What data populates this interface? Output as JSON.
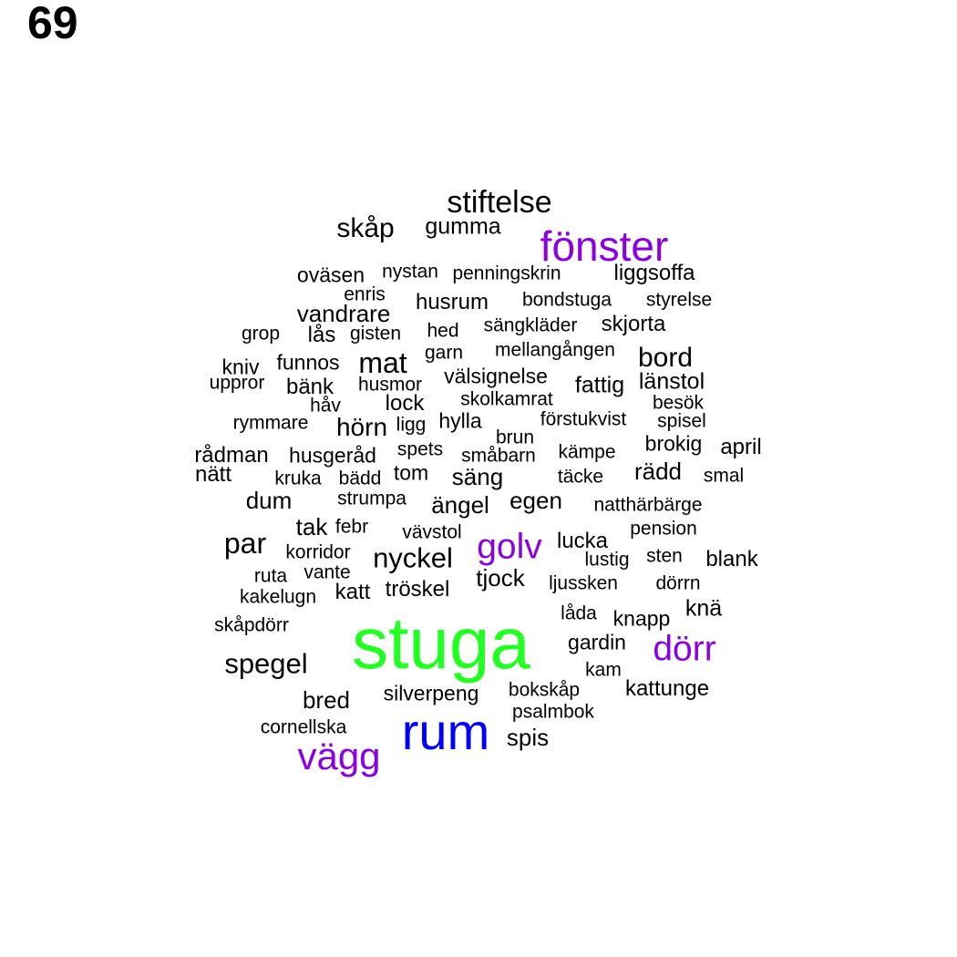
{
  "page_number": "69",
  "colors": {
    "default": "#000000",
    "purple": "#8B00E0",
    "blue": "#0000FF",
    "green": "#22FF22"
  },
  "words": [
    {
      "text": "stiftelse",
      "c": "default"
    },
    {
      "text": "skåp",
      "c": "default"
    },
    {
      "text": "gumma",
      "c": "default"
    },
    {
      "text": "fönster",
      "c": "purple"
    },
    {
      "text": "oväsen",
      "c": "default"
    },
    {
      "text": "nystan",
      "c": "default"
    },
    {
      "text": "penningskrin",
      "c": "default"
    },
    {
      "text": "liggsoffa",
      "c": "default"
    },
    {
      "text": "enris",
      "c": "default"
    },
    {
      "text": "husrum",
      "c": "default"
    },
    {
      "text": "bondstuga",
      "c": "default"
    },
    {
      "text": "styrelse",
      "c": "default"
    },
    {
      "text": "vandrare",
      "c": "default"
    },
    {
      "text": "grop",
      "c": "default"
    },
    {
      "text": "lås",
      "c": "default"
    },
    {
      "text": "gisten",
      "c": "default"
    },
    {
      "text": "hed",
      "c": "default"
    },
    {
      "text": "sängkläder",
      "c": "default"
    },
    {
      "text": "skjorta",
      "c": "default"
    },
    {
      "text": "garn",
      "c": "default"
    },
    {
      "text": "mellangången",
      "c": "default"
    },
    {
      "text": "kniv",
      "c": "default"
    },
    {
      "text": "funnos",
      "c": "default"
    },
    {
      "text": "mat",
      "c": "default"
    },
    {
      "text": "bord",
      "c": "default"
    },
    {
      "text": "uppror",
      "c": "default"
    },
    {
      "text": "bänk",
      "c": "default"
    },
    {
      "text": "husmor",
      "c": "default"
    },
    {
      "text": "välsignelse",
      "c": "default"
    },
    {
      "text": "fattig",
      "c": "default"
    },
    {
      "text": "länstol",
      "c": "default"
    },
    {
      "text": "håv",
      "c": "default"
    },
    {
      "text": "lock",
      "c": "default"
    },
    {
      "text": "skolkamrat",
      "c": "default"
    },
    {
      "text": "besök",
      "c": "default"
    },
    {
      "text": "rymmare",
      "c": "default"
    },
    {
      "text": "hörn",
      "c": "default"
    },
    {
      "text": "ligg",
      "c": "default"
    },
    {
      "text": "hylla",
      "c": "default"
    },
    {
      "text": "förstukvist",
      "c": "default"
    },
    {
      "text": "spisel",
      "c": "default"
    },
    {
      "text": "brun",
      "c": "default"
    },
    {
      "text": "brokig",
      "c": "default"
    },
    {
      "text": "rådman",
      "c": "default"
    },
    {
      "text": "husgeråd",
      "c": "default"
    },
    {
      "text": "spets",
      "c": "default"
    },
    {
      "text": "småbarn",
      "c": "default"
    },
    {
      "text": "kämpe",
      "c": "default"
    },
    {
      "text": "april",
      "c": "default"
    },
    {
      "text": "nätt",
      "c": "default"
    },
    {
      "text": "kruka",
      "c": "default"
    },
    {
      "text": "bädd",
      "c": "default"
    },
    {
      "text": "tom",
      "c": "default"
    },
    {
      "text": "säng",
      "c": "default"
    },
    {
      "text": "täcke",
      "c": "default"
    },
    {
      "text": "rädd",
      "c": "default"
    },
    {
      "text": "smal",
      "c": "default"
    },
    {
      "text": "dum",
      "c": "default"
    },
    {
      "text": "strumpa",
      "c": "default"
    },
    {
      "text": "ängel",
      "c": "default"
    },
    {
      "text": "egen",
      "c": "default"
    },
    {
      "text": "natthärbärge",
      "c": "default"
    },
    {
      "text": "tak",
      "c": "default"
    },
    {
      "text": "febr",
      "c": "default"
    },
    {
      "text": "vävstol",
      "c": "default"
    },
    {
      "text": "pension",
      "c": "default"
    },
    {
      "text": "par",
      "c": "default"
    },
    {
      "text": "korridor",
      "c": "default"
    },
    {
      "text": "nyckel",
      "c": "default"
    },
    {
      "text": "golv",
      "c": "purple"
    },
    {
      "text": "lucka",
      "c": "default"
    },
    {
      "text": "lustig",
      "c": "default"
    },
    {
      "text": "sten",
      "c": "default"
    },
    {
      "text": "blank",
      "c": "default"
    },
    {
      "text": "ruta",
      "c": "default"
    },
    {
      "text": "vante",
      "c": "default"
    },
    {
      "text": "tjock",
      "c": "default"
    },
    {
      "text": "ljussken",
      "c": "default"
    },
    {
      "text": "dörrn",
      "c": "default"
    },
    {
      "text": "kakelugn",
      "c": "default"
    },
    {
      "text": "katt",
      "c": "default"
    },
    {
      "text": "tröskel",
      "c": "default"
    },
    {
      "text": "knä",
      "c": "default"
    },
    {
      "text": "låda",
      "c": "default"
    },
    {
      "text": "knapp",
      "c": "default"
    },
    {
      "text": "skåpdörr",
      "c": "default"
    },
    {
      "text": "stuga",
      "c": "green"
    },
    {
      "text": "gardin",
      "c": "default"
    },
    {
      "text": "dörr",
      "c": "purple"
    },
    {
      "text": "spegel",
      "c": "default"
    },
    {
      "text": "kam",
      "c": "default"
    },
    {
      "text": "bokskåp",
      "c": "default"
    },
    {
      "text": "kattunge",
      "c": "default"
    },
    {
      "text": "bred",
      "c": "default"
    },
    {
      "text": "silverpeng",
      "c": "default"
    },
    {
      "text": "psalmbok",
      "c": "default"
    },
    {
      "text": "cornellska",
      "c": "default"
    },
    {
      "text": "rum",
      "c": "blue"
    },
    {
      "text": "spis",
      "c": "default"
    },
    {
      "text": "vägg",
      "c": "purple"
    }
  ]
}
